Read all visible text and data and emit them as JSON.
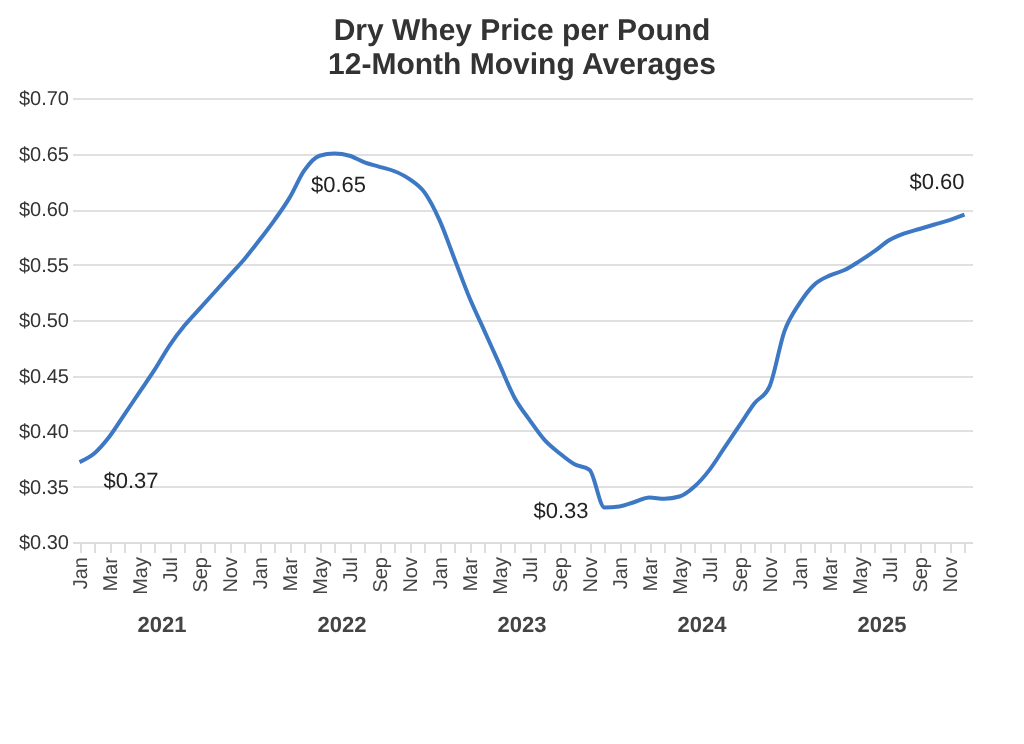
{
  "chart_data": {
    "type": "line",
    "title": [
      "Dry Whey Price per Pound",
      "12-Month Moving Averages"
    ],
    "categories": [
      "Jan",
      null,
      "Mar",
      null,
      "May",
      null,
      "Jul",
      null,
      "Sep",
      null,
      "Nov",
      null,
      "Jan",
      null,
      "Mar",
      null,
      "May",
      null,
      "Jul",
      null,
      "Sep",
      null,
      "Nov",
      null,
      "Jan",
      null,
      "Mar",
      null,
      "May",
      null,
      "Jul",
      null,
      "Sep",
      null,
      "Nov",
      null,
      "Jan",
      null,
      "Mar",
      null,
      "May",
      null,
      "Jul",
      null,
      "Sep",
      null,
      "Nov",
      null,
      "Jan",
      null,
      "Mar",
      null,
      "May",
      null,
      "Jul",
      null,
      "Sep",
      null,
      "Nov",
      null
    ],
    "series": [
      {
        "color": "#3c78c3",
        "values": [
          0.372,
          0.38,
          0.395,
          0.415,
          0.435,
          0.455,
          0.477,
          0.495,
          0.51,
          0.525,
          0.54,
          0.555,
          0.572,
          0.59,
          0.61,
          0.635,
          0.648,
          0.65,
          0.648,
          0.642,
          0.638,
          0.634,
          0.627,
          0.615,
          0.59,
          0.555,
          0.52,
          0.49,
          0.46,
          0.43,
          0.41,
          0.392,
          0.38,
          0.37,
          0.365,
          0.331,
          0.332,
          0.336,
          0.34,
          0.339,
          0.341,
          0.35,
          0.365,
          0.385,
          0.405,
          0.425,
          0.44,
          0.49,
          0.515,
          0.532,
          0.54,
          0.545,
          0.553,
          0.562,
          0.572,
          0.578,
          0.582,
          0.586,
          0.59,
          0.595
        ],
        "value_labels": [
          "$0.37",
          null,
          null,
          null,
          null,
          null,
          null,
          null,
          null,
          null,
          null,
          null,
          null,
          null,
          null,
          null,
          null,
          "$0.65",
          null,
          null,
          null,
          null,
          null,
          null,
          null,
          null,
          null,
          null,
          null,
          null,
          null,
          null,
          null,
          null,
          null,
          "$0.33",
          null,
          null,
          null,
          null,
          null,
          null,
          null,
          null,
          null,
          null,
          null,
          null,
          null,
          null,
          null,
          null,
          null,
          null,
          null,
          null,
          null,
          null,
          null,
          "$0.60"
        ]
      }
    ],
    "annotations": [
      "2021",
      "2022",
      "2023",
      "2024",
      "2025"
    ],
    "ylim": [
      0.3,
      0.7
    ],
    "yticks": [
      {
        "value": 0.3,
        "label": "$0.30"
      },
      {
        "value": 0.35,
        "label": "$0.35"
      },
      {
        "value": 0.4,
        "label": "$0.40"
      },
      {
        "value": 0.45,
        "label": "$0.45"
      },
      {
        "value": 0.5,
        "label": "$0.50"
      },
      {
        "value": 0.55,
        "label": "$0.55"
      },
      {
        "value": 0.6,
        "label": "$0.60"
      },
      {
        "value": 0.65,
        "label": "$0.65"
      },
      {
        "value": 0.7,
        "label": "$0.70"
      }
    ],
    "grid": "y"
  }
}
